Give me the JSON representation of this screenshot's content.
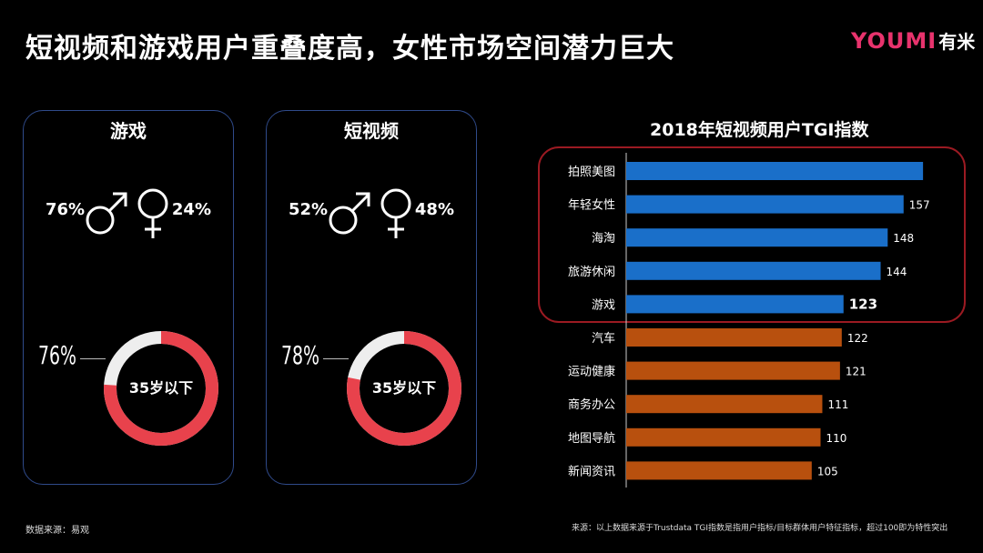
{
  "slide": {
    "title": "短视频和游戏用户重叠度高，女性市场空间潜力巨大",
    "logo_brand": "YOUMI",
    "logo_cn": "有米"
  },
  "panels": [
    {
      "title": "游戏",
      "male_pct": "76%",
      "female_pct": "24%",
      "donut_label": "76%",
      "donut_value": 76,
      "donut_center": "35岁以下"
    },
    {
      "title": "短视频",
      "male_pct": "52%",
      "female_pct": "48%",
      "donut_label": "78%",
      "donut_value": 78,
      "donut_center": "35岁以下"
    }
  ],
  "colors": {
    "donut_fill": "#e8424c",
    "donut_rest": "#eeeeee",
    "bar_blue": "#1a6fc9",
    "bar_orange": "#b8500e",
    "highlight_border": "#9b1a22",
    "panel_border": "#2f4a8a"
  },
  "chart_data": {
    "type": "bar",
    "orientation": "horizontal",
    "title": "2018年短视频用户TGI指数",
    "categories": [
      "拍照美图",
      "年轻女性",
      "海淘",
      "旅游休闲",
      "游戏",
      "汽车",
      "运动健康",
      "商务办公",
      "地图导航",
      "新闻资讯"
    ],
    "values": [
      168,
      157,
      148,
      144,
      123,
      122,
      121,
      111,
      110,
      105
    ],
    "value_labels": [
      "",
      "157",
      "148",
      "144",
      "123",
      "122",
      "121",
      "111",
      "110",
      "105"
    ],
    "highlight_count": 5,
    "bold_label_index": 4,
    "xlim": [
      0,
      170
    ]
  },
  "sources": {
    "left": "数据来源：易观",
    "right": "来源：以上数据来源于Trustdata TGI指数是指用户指标/目标群体用户特征指标，超过100即为特性突出"
  }
}
